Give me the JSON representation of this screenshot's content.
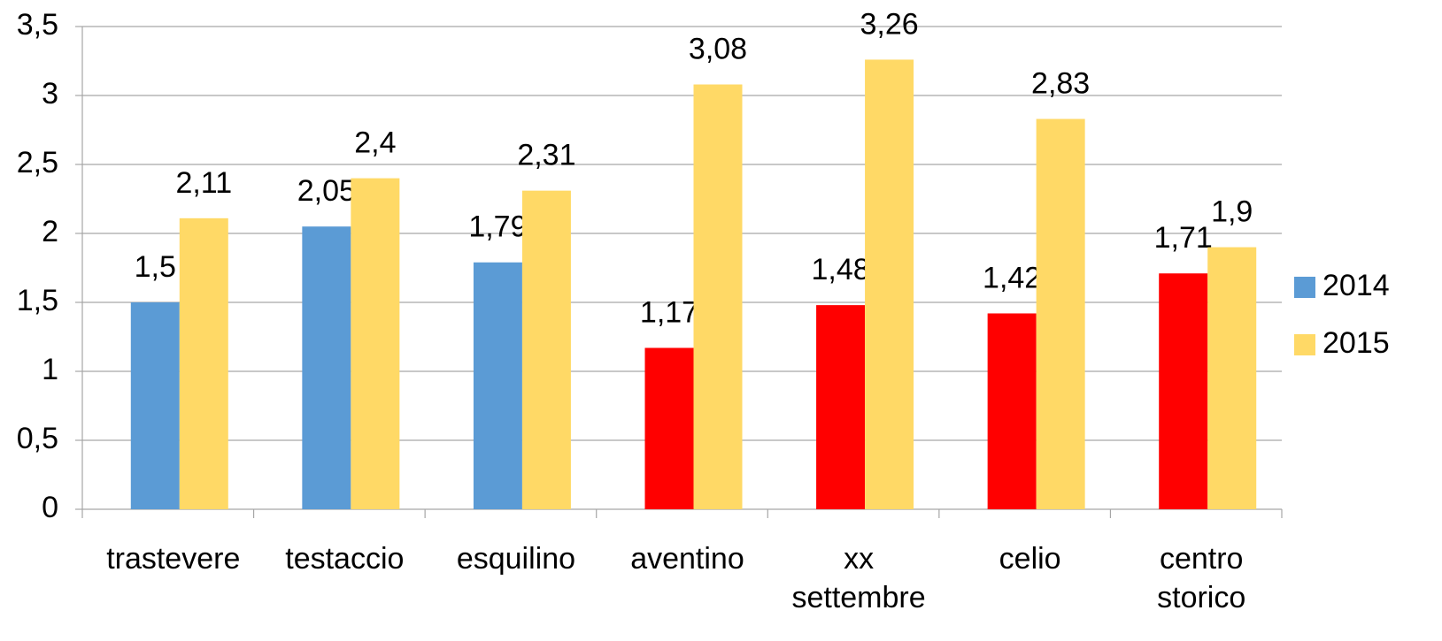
{
  "chart_data": {
    "type": "bar",
    "categories": [
      "trastevere",
      "testaccio",
      "esquilino",
      "aventino",
      "xx settembre",
      "celio",
      "centro storico"
    ],
    "series": [
      {
        "name": "2014",
        "color": "#5b9bd5",
        "colors": [
          "#5b9bd5",
          "#5b9bd5",
          "#5b9bd5",
          "#ff0000",
          "#ff0000",
          "#ff0000",
          "#ff0000"
        ],
        "values": [
          1.5,
          2.05,
          1.79,
          1.17,
          1.48,
          1.42,
          1.71
        ],
        "value_labels": [
          "1,5",
          "2,05",
          "1,79",
          "1,17",
          "1,48",
          "1,42",
          "1,71"
        ]
      },
      {
        "name": "2015",
        "color": "#ffd966",
        "values": [
          2.11,
          2.4,
          2.31,
          3.08,
          3.26,
          2.83,
          1.9
        ],
        "value_labels": [
          "2,11",
          "2,4",
          "2,31",
          "3,08",
          "3,26",
          "2,83",
          "1,9"
        ]
      }
    ],
    "ylim": [
      0,
      3.5
    ],
    "yticks": [
      0,
      {
        "value": 0.5,
        "label": "0,5"
      },
      1,
      {
        "value": 1.5,
        "label": "1,5"
      },
      2,
      {
        "value": 2.5,
        "label": "2,5"
      },
      3,
      {
        "value": 3.5,
        "label": "3,5"
      }
    ],
    "grid": true,
    "legend": "right"
  }
}
